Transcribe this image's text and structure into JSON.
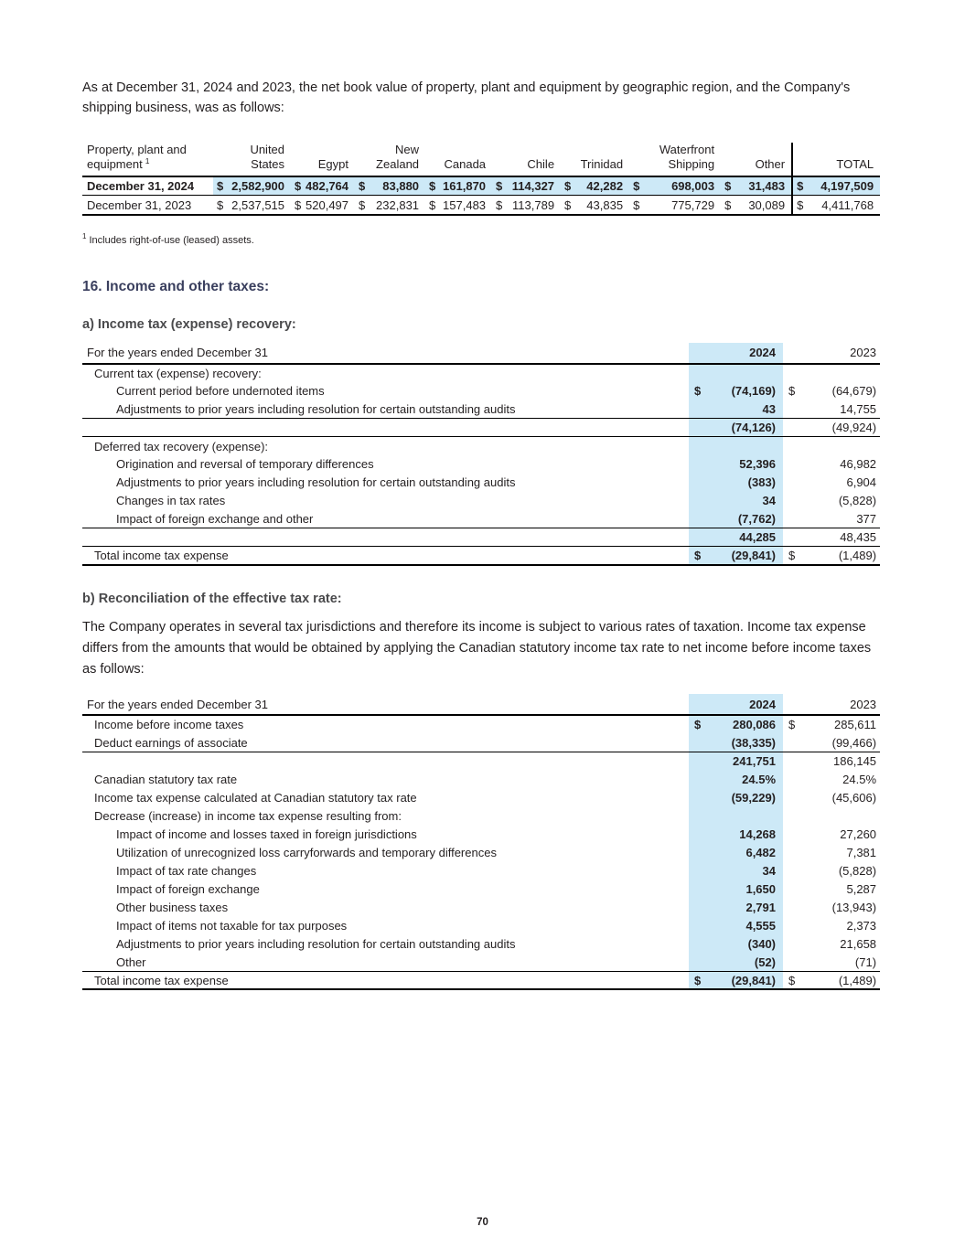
{
  "colors": {
    "highlight_blue": "#cde9f7",
    "heading_navy": "#3a3f5e",
    "subheading_gray": "#4a4a4c"
  },
  "page": {
    "number": "70",
    "intro_paragraph": "As at December 31, 2024 and 2023, the net book value of property, plant and equipment by geographic region, and the Company's shipping business, was as follows:",
    "footnote_sup": "1",
    "footnote_text": "Includes right-of-use (leased) assets."
  },
  "ppe_table": {
    "label_header_line1": "Property, plant and",
    "label_header_line2": "equipment",
    "label_sup": "1",
    "currency_symbol": "$",
    "col_headers": [
      "United\nStates",
      "Egypt",
      "New\nZealand",
      "Canada",
      "Chile",
      "Trinidad",
      "Waterfront\nShipping",
      "Other",
      "TOTAL"
    ],
    "rows": [
      {
        "label": "December 31, 2024",
        "values": [
          "2,582,900",
          "482,764",
          "83,880",
          "161,870",
          "114,327",
          "42,282",
          "698,003",
          "31,483",
          "4,197,509"
        ]
      },
      {
        "label": "December 31, 2023",
        "values": [
          "2,537,515",
          "520,497",
          "232,831",
          "157,483",
          "113,789",
          "43,835",
          "775,729",
          "30,089",
          "4,411,768"
        ]
      }
    ]
  },
  "section": {
    "heading": "16. Income and other taxes:",
    "sub_a": "a) Income tax (expense) recovery:",
    "sub_b": "b) Reconciliation of the effective tax rate:",
    "para_b": "The Company operates in several tax jurisdictions and therefore its income is subject to various rates of taxation. Income tax expense differs from the amounts that would be obtained by applying the Canadian statutory income tax rate to net income before income taxes as follows:"
  },
  "table_a": {
    "header": {
      "label": "For the years ended December 31",
      "y2024": "2024",
      "y2023": "2023"
    },
    "rows": [
      {
        "label": "Current tax (expense) recovery:",
        "ind": 1
      },
      {
        "label": "Current period before undernoted items",
        "ind": 2,
        "d1": "$",
        "v1": "(74,169)",
        "d2": "$",
        "v2": "(64,679)"
      },
      {
        "label": "Adjustments to prior years including resolution for certain outstanding audits",
        "ind": 2,
        "v1": "43",
        "v2": "14,755",
        "rule": "thin"
      },
      {
        "label": "",
        "ind": 0,
        "v1": "(74,126)",
        "v2": "(49,924)",
        "rule": "thin"
      },
      {
        "label": "Deferred tax recovery (expense):",
        "ind": 1
      },
      {
        "label": "Origination and reversal of temporary differences",
        "ind": 2,
        "v1": "52,396",
        "v2": "46,982"
      },
      {
        "label": "Adjustments to prior years including resolution for certain outstanding audits",
        "ind": 2,
        "v1": "(383)",
        "v2": "6,904"
      },
      {
        "label": "Changes in tax rates",
        "ind": 2,
        "v1": "34",
        "v2": "(5,828)"
      },
      {
        "label": "Impact of foreign exchange and other",
        "ind": 2,
        "v1": "(7,762)",
        "v2": "377",
        "rule": "thin"
      },
      {
        "label": "",
        "ind": 0,
        "v1": "44,285",
        "v2": "48,435",
        "rule": "thin"
      },
      {
        "label": "Total income tax expense",
        "ind": 1,
        "d1": "$",
        "v1": "(29,841)",
        "d2": "$",
        "v2": "(1,489)",
        "rule": "thick"
      }
    ]
  },
  "table_b": {
    "header": {
      "label": "For the years ended December 31",
      "y2024": "2024",
      "y2023": "2023"
    },
    "rows": [
      {
        "label": "Income before income taxes",
        "ind": 1,
        "d1": "$",
        "v1": "280,086",
        "d2": "$",
        "v2": "285,611"
      },
      {
        "label": "Deduct earnings of associate",
        "ind": 1,
        "v1": "(38,335)",
        "v2": "(99,466)",
        "rule": "thin"
      },
      {
        "label": "",
        "ind": 0,
        "v1": "241,751",
        "v2": "186,145"
      },
      {
        "label": "Canadian statutory tax rate",
        "ind": 1,
        "v1": "24.5%",
        "v2": "24.5%"
      },
      {
        "label": "Income tax expense calculated at Canadian statutory tax rate",
        "ind": 1,
        "v1": "(59,229)",
        "v2": "(45,606)"
      },
      {
        "label": "Decrease (increase) in income tax expense resulting from:",
        "ind": 1
      },
      {
        "label": "Impact of income and losses taxed in foreign jurisdictions",
        "ind": 2,
        "v1": "14,268",
        "v2": "27,260"
      },
      {
        "label": "Utilization of unrecognized loss carryforwards and temporary differences",
        "ind": 2,
        "v1": "6,482",
        "v2": "7,381"
      },
      {
        "label": "Impact of tax rate changes",
        "ind": 2,
        "v1": "34",
        "v2": "(5,828)"
      },
      {
        "label": "Impact of foreign exchange",
        "ind": 2,
        "v1": "1,650",
        "v2": "5,287"
      },
      {
        "label": "Other business taxes",
        "ind": 2,
        "v1": "2,791",
        "v2": "(13,943)"
      },
      {
        "label": "Impact of items not taxable for tax purposes",
        "ind": 2,
        "v1": "4,555",
        "v2": "2,373"
      },
      {
        "label": "Adjustments to prior years including resolution for certain outstanding audits",
        "ind": 2,
        "v1": "(340)",
        "v2": "21,658"
      },
      {
        "label": "Other",
        "ind": 2,
        "v1": "(52)",
        "v2": "(71)",
        "rule": "thin"
      },
      {
        "label": "Total income tax expense",
        "ind": 1,
        "d1": "$",
        "v1": "(29,841)",
        "d2": "$",
        "v2": "(1,489)",
        "rule": "thick"
      }
    ]
  }
}
